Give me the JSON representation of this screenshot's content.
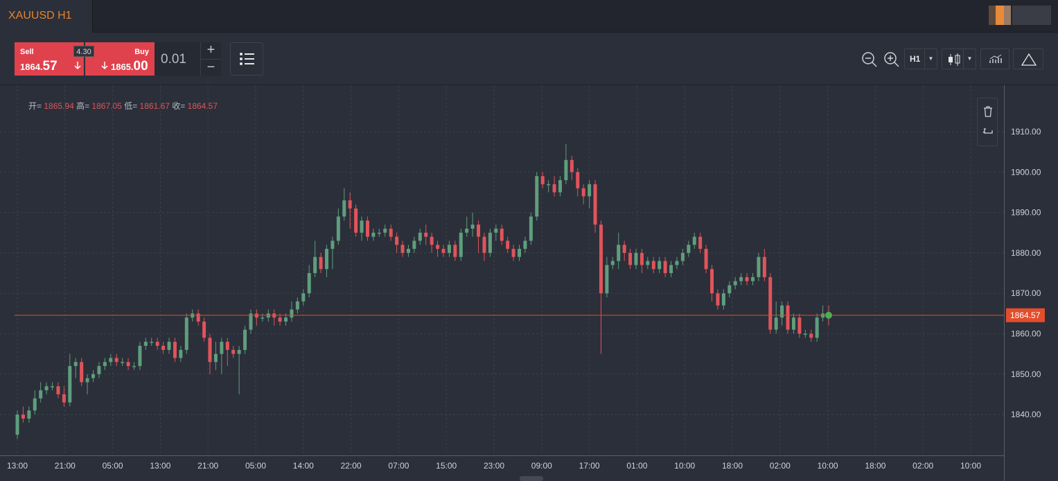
{
  "tab": {
    "title": "XAUUSD H1"
  },
  "trade": {
    "sell_label": "Sell",
    "sell_price_small": "1864.",
    "sell_price_big": "57",
    "buy_label": "Buy",
    "buy_price_small": "1865.",
    "buy_price_big": "00",
    "spread": "4.30",
    "lot": "0.01",
    "plus": "+",
    "minus": "−"
  },
  "toolbar": {
    "timeframe": "H1",
    "icons": [
      "zoom-out-icon",
      "zoom-in-icon",
      "candlestick-icon",
      "indicators-icon",
      "drawing-triangle-icon",
      "list-icon"
    ]
  },
  "ohlc": {
    "open_label": "开=",
    "open": "1865.94",
    "high_label": "高=",
    "high": "1867.05",
    "low_label": "低=",
    "low": "1861.67",
    "close_label": "收=",
    "close": "1864.57"
  },
  "colors": {
    "up": "#5f9e7c",
    "down": "#e0545a",
    "accent": "#e8832a",
    "price_line": "#e34d2b"
  },
  "chart_data": {
    "type": "candlestick",
    "symbol": "XAUUSD",
    "timeframe": "H1",
    "ylim": [
      1834,
      1918
    ],
    "y_ticks": [
      "1910.00",
      "1900.00",
      "1890.00",
      "1880.00",
      "1870.00",
      "1860.00",
      "1850.00",
      "1840.00"
    ],
    "x_ticks": [
      "13:00",
      "21:00",
      "05:00",
      "13:00",
      "21:00",
      "05:00",
      "14:00",
      "22:00",
      "07:00",
      "15:00",
      "23:00",
      "09:00",
      "17:00",
      "01:00",
      "10:00",
      "18:00",
      "02:00",
      "10:00",
      "18:00",
      "02:00",
      "10:00"
    ],
    "current_price": 1864.57,
    "current_price_label": "1864.57",
    "candles": [
      [
        1835,
        1840,
        1834,
        1841
      ],
      [
        1840,
        1839,
        1838,
        1842
      ],
      [
        1839,
        1841,
        1838,
        1842
      ],
      [
        1841,
        1844,
        1840,
        1846
      ],
      [
        1844,
        1846,
        1843,
        1848
      ],
      [
        1846,
        1847,
        1845,
        1848
      ],
      [
        1847,
        1847,
        1846,
        1848
      ],
      [
        1847,
        1845,
        1844,
        1848
      ],
      [
        1845,
        1843,
        1842,
        1847
      ],
      [
        1843,
        1852,
        1842,
        1855
      ],
      [
        1852,
        1853,
        1849,
        1854
      ],
      [
        1853,
        1848,
        1847,
        1854
      ],
      [
        1848,
        1849,
        1845,
        1850
      ],
      [
        1849,
        1850,
        1848,
        1851
      ],
      [
        1850,
        1852,
        1849,
        1853
      ],
      [
        1852,
        1853,
        1851,
        1854
      ],
      [
        1853,
        1854,
        1852,
        1855
      ],
      [
        1854,
        1853,
        1852,
        1855
      ],
      [
        1853,
        1853,
        1852,
        1854
      ],
      [
        1853,
        1852,
        1851,
        1854
      ],
      [
        1852,
        1852,
        1851,
        1853
      ],
      [
        1852,
        1857,
        1851,
        1858
      ],
      [
        1857,
        1858,
        1856,
        1859
      ],
      [
        1858,
        1858,
        1857,
        1859
      ],
      [
        1858,
        1857,
        1856,
        1859
      ],
      [
        1857,
        1856,
        1855,
        1858
      ],
      [
        1856,
        1858,
        1855,
        1859
      ],
      [
        1858,
        1854,
        1853,
        1859
      ],
      [
        1854,
        1856,
        1853,
        1857
      ],
      [
        1856,
        1864,
        1855,
        1865
      ],
      [
        1864,
        1865,
        1863,
        1866
      ],
      [
        1865,
        1863,
        1862,
        1866
      ],
      [
        1863,
        1859,
        1858,
        1864
      ],
      [
        1859,
        1853,
        1850,
        1860
      ],
      [
        1853,
        1855,
        1851,
        1858
      ],
      [
        1855,
        1858,
        1850,
        1859
      ],
      [
        1858,
        1856,
        1852,
        1859
      ],
      [
        1856,
        1855,
        1854,
        1857
      ],
      [
        1855,
        1856,
        1845,
        1857
      ],
      [
        1856,
        1861,
        1855,
        1862
      ],
      [
        1861,
        1865,
        1860,
        1866
      ],
      [
        1865,
        1864,
        1862,
        1866
      ],
      [
        1864,
        1864,
        1863,
        1865
      ],
      [
        1864,
        1865,
        1863,
        1866
      ],
      [
        1865,
        1864,
        1862,
        1866
      ],
      [
        1864,
        1863,
        1862,
        1865
      ],
      [
        1863,
        1864,
        1862,
        1865
      ],
      [
        1864,
        1866,
        1863,
        1868
      ],
      [
        1866,
        1868,
        1865,
        1869
      ],
      [
        1868,
        1870,
        1867,
        1871
      ],
      [
        1870,
        1875,
        1869,
        1877
      ],
      [
        1875,
        1879,
        1874,
        1883
      ],
      [
        1879,
        1876,
        1875,
        1880
      ],
      [
        1876,
        1881,
        1874,
        1882
      ],
      [
        1881,
        1883,
        1876,
        1884
      ],
      [
        1883,
        1889,
        1882,
        1891
      ],
      [
        1889,
        1893,
        1888,
        1896
      ],
      [
        1893,
        1891,
        1886,
        1895
      ],
      [
        1891,
        1885,
        1884,
        1892
      ],
      [
        1885,
        1888,
        1883,
        1889
      ],
      [
        1888,
        1884,
        1883,
        1889
      ],
      [
        1884,
        1885,
        1883,
        1886
      ],
      [
        1885,
        1885,
        1884,
        1886
      ],
      [
        1885,
        1886,
        1884,
        1887
      ],
      [
        1886,
        1884,
        1883,
        1887
      ],
      [
        1884,
        1882,
        1880,
        1885
      ],
      [
        1882,
        1880,
        1879,
        1883
      ],
      [
        1880,
        1881,
        1879,
        1882
      ],
      [
        1881,
        1883,
        1880,
        1884
      ],
      [
        1883,
        1885,
        1882,
        1886
      ],
      [
        1885,
        1884,
        1882,
        1887
      ],
      [
        1884,
        1882,
        1880,
        1885
      ],
      [
        1882,
        1881,
        1879,
        1883
      ],
      [
        1881,
        1880,
        1879,
        1882
      ],
      [
        1880,
        1882,
        1879,
        1883
      ],
      [
        1882,
        1879,
        1878,
        1883
      ],
      [
        1879,
        1885,
        1878,
        1886
      ],
      [
        1885,
        1886,
        1884,
        1889
      ],
      [
        1886,
        1887,
        1884,
        1890
      ],
      [
        1887,
        1884,
        1880,
        1888
      ],
      [
        1884,
        1880,
        1878,
        1885
      ],
      [
        1880,
        1885,
        1879,
        1886
      ],
      [
        1885,
        1886,
        1883,
        1887
      ],
      [
        1886,
        1883,
        1882,
        1887
      ],
      [
        1883,
        1881,
        1880,
        1884
      ],
      [
        1881,
        1879,
        1878,
        1882
      ],
      [
        1879,
        1881,
        1878,
        1882
      ],
      [
        1881,
        1883,
        1880,
        1884
      ],
      [
        1883,
        1889,
        1882,
        1890
      ],
      [
        1889,
        1899,
        1888,
        1900
      ],
      [
        1899,
        1897,
        1896,
        1900
      ],
      [
        1897,
        1897,
        1895,
        1898
      ],
      [
        1897,
        1895,
        1894,
        1899
      ],
      [
        1895,
        1898,
        1894,
        1899
      ],
      [
        1898,
        1903,
        1897,
        1907
      ],
      [
        1903,
        1900,
        1898,
        1904
      ],
      [
        1900,
        1896,
        1894,
        1901
      ],
      [
        1896,
        1894,
        1892,
        1897
      ],
      [
        1894,
        1897,
        1891,
        1898
      ],
      [
        1897,
        1887,
        1885,
        1898
      ],
      [
        1887,
        1870,
        1855,
        1888
      ],
      [
        1870,
        1877,
        1869,
        1879
      ],
      [
        1877,
        1878,
        1876,
        1879
      ],
      [
        1878,
        1882,
        1876,
        1885
      ],
      [
        1882,
        1880,
        1878,
        1883
      ],
      [
        1880,
        1877,
        1876,
        1881
      ],
      [
        1877,
        1880,
        1876,
        1881
      ],
      [
        1880,
        1877,
        1875,
        1881
      ],
      [
        1877,
        1878,
        1876,
        1879
      ],
      [
        1878,
        1876,
        1875,
        1879
      ],
      [
        1876,
        1878,
        1875,
        1879
      ],
      [
        1878,
        1875,
        1874,
        1879
      ],
      [
        1875,
        1877,
        1874,
        1878
      ],
      [
        1877,
        1878,
        1876,
        1879
      ],
      [
        1878,
        1880,
        1877,
        1881
      ],
      [
        1880,
        1882,
        1879,
        1883
      ],
      [
        1882,
        1884,
        1881,
        1885
      ],
      [
        1884,
        1881,
        1880,
        1885
      ],
      [
        1881,
        1876,
        1875,
        1882
      ],
      [
        1876,
        1870,
        1868,
        1877
      ],
      [
        1870,
        1867,
        1866,
        1871
      ],
      [
        1867,
        1870,
        1866,
        1871
      ],
      [
        1870,
        1872,
        1869,
        1873
      ],
      [
        1872,
        1873,
        1871,
        1874
      ],
      [
        1873,
        1874,
        1872,
        1875
      ],
      [
        1874,
        1873,
        1872,
        1875
      ],
      [
        1873,
        1874,
        1872,
        1875
      ],
      [
        1874,
        1879,
        1873,
        1880
      ],
      [
        1879,
        1874,
        1873,
        1881
      ],
      [
        1874,
        1861,
        1860,
        1875
      ],
      [
        1861,
        1864,
        1860,
        1868
      ],
      [
        1864,
        1867,
        1862,
        1868
      ],
      [
        1867,
        1861,
        1860,
        1868
      ],
      [
        1861,
        1864,
        1860,
        1865
      ],
      [
        1864,
        1860,
        1859,
        1865
      ],
      [
        1860,
        1860,
        1859,
        1861
      ],
      [
        1860,
        1859,
        1858,
        1861
      ],
      [
        1859,
        1864,
        1858,
        1865
      ],
      [
        1864,
        1865,
        1863,
        1867
      ],
      [
        1865,
        1864.57,
        1862,
        1867
      ]
    ]
  }
}
